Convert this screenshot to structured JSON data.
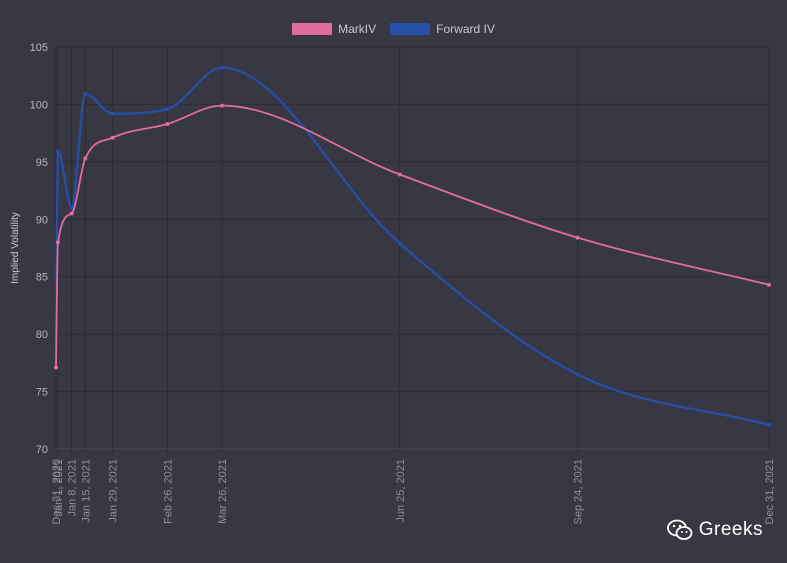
{
  "chart_data": {
    "type": "line",
    "ylabel": "Implied Volatility",
    "ylim": [
      70,
      105
    ],
    "yticks": [
      70,
      75,
      80,
      85,
      90,
      95,
      100,
      105
    ],
    "x_dates": [
      "2020-12-31",
      "2021-01-01",
      "2021-01-08",
      "2021-01-15",
      "2021-01-29",
      "2021-02-26",
      "2021-03-26",
      "2021-06-25",
      "2021-09-24",
      "2021-12-31"
    ],
    "x_tick_labels": [
      "Dec 31, 2020",
      "Jan 1, 2021",
      "Jan 8, 2021",
      "Jan 15, 2021",
      "Jan 29, 2021",
      "Feb 26, 2021",
      "Mar 26, 2021",
      "Jun 25, 2021",
      "Sep 24, 2021",
      "Dec 31, 2021"
    ],
    "series": [
      {
        "name": "MarkIV",
        "color": "#e06c9f",
        "values": [
          77.1,
          88.0,
          90.5,
          95.3,
          97.1,
          98.3,
          99.9,
          93.9,
          88.4,
          84.3
        ]
      },
      {
        "name": "Forward IV",
        "color": "#2650a8",
        "values": [
          77.1,
          95.9,
          91.0,
          100.9,
          99.2,
          99.6,
          103.2,
          87.9,
          76.5,
          72.1
        ]
      }
    ],
    "grid": true,
    "legend": "top-center"
  },
  "watermark": {
    "text": "Greeks",
    "icon": "wechat-icon"
  }
}
